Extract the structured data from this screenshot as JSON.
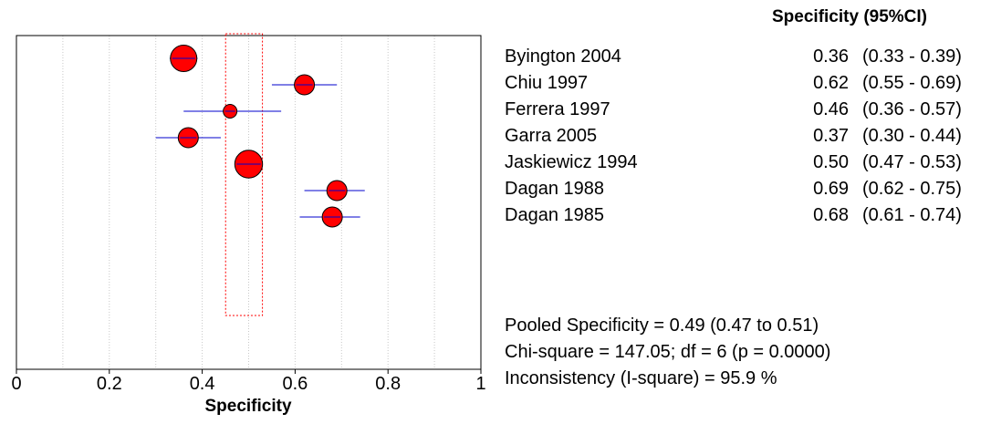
{
  "chart_data": {
    "type": "scatter",
    "subtype": "forest-plot",
    "xlabel": "Specificity",
    "xlim": [
      0,
      1
    ],
    "x_ticks": [
      0,
      0.2,
      0.4,
      0.6,
      0.8,
      1
    ],
    "x_tick_labels": [
      "0",
      "0.2",
      "0.4",
      "0.6",
      "0.8",
      "1"
    ],
    "grid": "vertical dotted lines every 0.1",
    "column_header": "Specificity (95%CI)",
    "studies": [
      {
        "name": "Byington 2004",
        "estimate": 0.36,
        "estimate_label": "0.36",
        "ci_low": 0.33,
        "ci_high": 0.39,
        "ci_label": "(0.33 - 0.39)",
        "weight": 3
      },
      {
        "name": "Chiu 1997",
        "estimate": 0.62,
        "estimate_label": "0.62",
        "ci_low": 0.55,
        "ci_high": 0.69,
        "ci_label": "(0.55 - 0.69)",
        "weight": 2
      },
      {
        "name": "Ferrera 1997",
        "estimate": 0.46,
        "estimate_label": "0.46",
        "ci_low": 0.36,
        "ci_high": 0.57,
        "ci_label": "(0.36 - 0.57)",
        "weight": 1
      },
      {
        "name": "Garra 2005",
        "estimate": 0.37,
        "estimate_label": "0.37",
        "ci_low": 0.3,
        "ci_high": 0.44,
        "ci_label": "(0.30 - 0.44)",
        "weight": 2
      },
      {
        "name": "Jaskiewicz 1994",
        "estimate": 0.5,
        "estimate_label": "0.50",
        "ci_low": 0.47,
        "ci_high": 0.53,
        "ci_label": "(0.47 - 0.53)",
        "weight": 3.2
      },
      {
        "name": "Dagan 1988",
        "estimate": 0.69,
        "estimate_label": "0.69",
        "ci_low": 0.62,
        "ci_high": 0.75,
        "ci_label": "(0.62 - 0.75)",
        "weight": 2
      },
      {
        "name": "Dagan 1985",
        "estimate": 0.68,
        "estimate_label": "0.68",
        "ci_low": 0.61,
        "ci_high": 0.74,
        "ci_label": "(0.61 - 0.74)",
        "weight": 2
      }
    ],
    "pooled": {
      "estimate": 0.49,
      "ci_low": 0.47,
      "ci_high": 0.51
    },
    "colors": {
      "marker": "#ff0000",
      "ci_line": "#0000cc",
      "pooled": "#ff0000",
      "grid": "#c8c8c8"
    }
  },
  "stats": {
    "pooled": "Pooled Specificity = 0.49 (0.47 to 0.51)",
    "chisq": "Chi-square = 147.05; df =  6 (p = 0.0000)",
    "inconsistency": "Inconsistency (I-square) = 95.9 %"
  }
}
